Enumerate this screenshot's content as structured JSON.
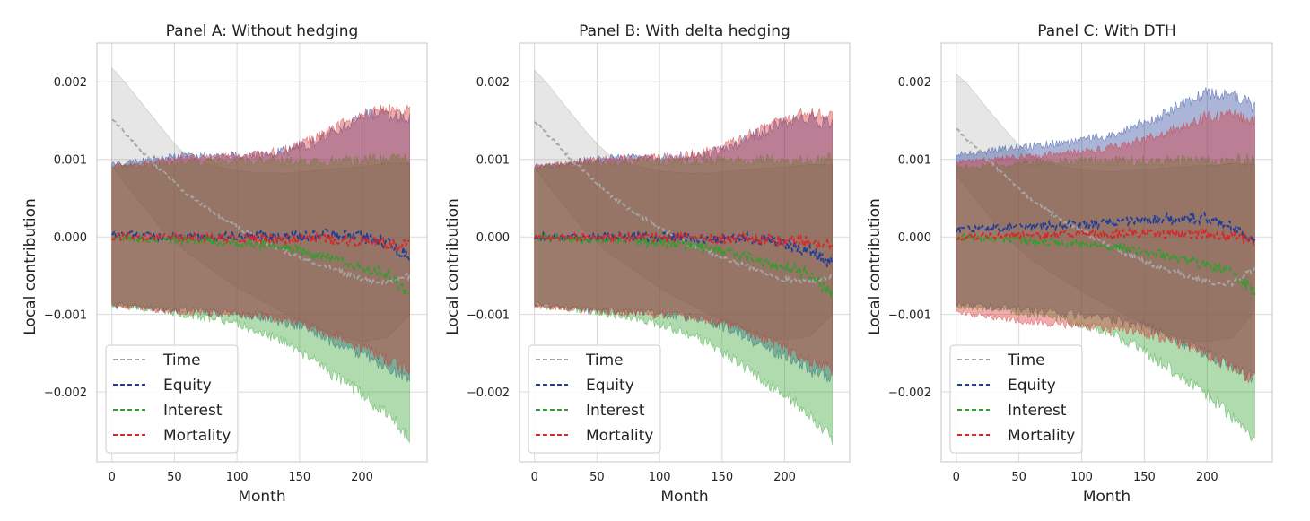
{
  "figure": {
    "xlabel": "Month",
    "ylabel": "Local contribution",
    "legend": [
      "Time",
      "Equity",
      "Interest",
      "Mortality"
    ]
  },
  "chart_data": [
    {
      "type": "line",
      "title": "Panel A: Without hedging",
      "xlabel": "Month",
      "ylabel": "Local contribution",
      "xlim": [
        -12,
        252
      ],
      "ylim": [
        -0.0029,
        0.0025
      ],
      "xticks": [
        0,
        50,
        100,
        150,
        200
      ],
      "yticks": [
        0.002,
        0.001,
        0.0,
        -0.001,
        -0.002
      ],
      "ytick_labels": [
        "0.002",
        "0.001",
        "0.000",
        "−0.001",
        "−0.002"
      ],
      "legend_position": "lower-left",
      "grid": true,
      "series": [
        {
          "name": "Time",
          "color": "#a6a6a6",
          "x": [
            0,
            10,
            20,
            30,
            40,
            50,
            60,
            80,
            100,
            120,
            140,
            160,
            180,
            200,
            220,
            238
          ],
          "mean": [
            0.00152,
            0.00135,
            0.00118,
            0.001,
            0.00085,
            0.0007,
            0.00055,
            0.00032,
            0.00013,
            -5e-05,
            -0.0002,
            -0.00033,
            -0.00043,
            -0.00055,
            -0.00058,
            -0.0005
          ],
          "band_upper": [
            0.00218,
            0.002,
            0.0018,
            0.0016,
            0.0014,
            0.0012,
            0.00105,
            0.00092,
            0.00085,
            0.00082,
            0.00082,
            0.00085,
            0.00088,
            0.0009,
            0.00095,
            0.00095
          ],
          "band_lower": [
            0.00092,
            0.0007,
            0.0005,
            0.0003,
            0.0001,
            -5e-05,
            -0.0002,
            -0.00042,
            -0.00065,
            -0.00082,
            -0.001,
            -0.00115,
            -0.00128,
            -0.00135,
            -0.0013,
            -0.001
          ]
        },
        {
          "name": "Equity",
          "color": "#1f3d99",
          "x": [
            0,
            20,
            40,
            60,
            80,
            100,
            120,
            140,
            160,
            180,
            200,
            220,
            238
          ],
          "mean": [
            5e-05,
            2e-05,
            0.0,
            0.0,
            1e-05,
            2e-05,
            1e-05,
            0.0,
            2e-05,
            3e-05,
            0.0,
            -8e-05,
            -0.00025
          ],
          "band_upper": [
            0.00093,
            0.00095,
            0.001,
            0.00103,
            0.00102,
            0.00102,
            0.00105,
            0.00108,
            0.00118,
            0.00135,
            0.00152,
            0.00155,
            0.00148
          ],
          "band_lower": [
            -0.00085,
            -0.00088,
            -0.00092,
            -0.00093,
            -0.00095,
            -0.00097,
            -0.001,
            -0.00108,
            -0.00118,
            -0.00135,
            -0.00148,
            -0.00165,
            -0.00175
          ]
        },
        {
          "name": "Interest",
          "color": "#2ca02c",
          "x": [
            0,
            20,
            40,
            60,
            80,
            100,
            120,
            140,
            160,
            180,
            200,
            220,
            238
          ],
          "mean": [
            0.0,
            -2e-05,
            -3e-05,
            -5e-05,
            -6e-05,
            -8e-05,
            -0.0001,
            -0.00014,
            -0.00022,
            -0.0003,
            -0.0004,
            -0.00048,
            -0.00075
          ],
          "band_upper": [
            0.00088,
            0.0009,
            0.00092,
            0.00093,
            0.00095,
            0.00095,
            0.00095,
            0.00095,
            0.00095,
            0.00095,
            0.00095,
            0.00095,
            0.00095
          ],
          "band_lower": [
            -0.00088,
            -0.0009,
            -0.00093,
            -0.00098,
            -0.00103,
            -0.0011,
            -0.0012,
            -0.00135,
            -0.00155,
            -0.00178,
            -0.002,
            -0.00225,
            -0.00255
          ]
        },
        {
          "name": "Mortality",
          "color": "#d62728",
          "x": [
            0,
            20,
            40,
            60,
            80,
            100,
            120,
            140,
            160,
            180,
            200,
            220,
            238
          ],
          "mean": [
            0.0,
            0.0,
            0.0,
            -1e-05,
            0.0,
            -2e-05,
            -1e-05,
            -3e-05,
            -2e-05,
            -4e-05,
            -5e-05,
            -8e-05,
            -0.00012
          ],
          "band_upper": [
            0.0009,
            0.00093,
            0.00097,
            0.001,
            0.001,
            0.00102,
            0.00105,
            0.0011,
            0.00122,
            0.00138,
            0.00155,
            0.00162,
            0.00158
          ],
          "band_lower": [
            -0.00088,
            -0.0009,
            -0.00093,
            -0.00095,
            -0.00096,
            -0.00098,
            -0.001,
            -0.00105,
            -0.00113,
            -0.00125,
            -0.0014,
            -0.00155,
            -0.00168
          ]
        }
      ]
    },
    {
      "type": "line",
      "title": "Panel B: With delta hedging",
      "xlabel": "Month",
      "ylabel": "Local contribution",
      "xlim": [
        -12,
        252
      ],
      "ylim": [
        -0.0029,
        0.0025
      ],
      "xticks": [
        0,
        50,
        100,
        150,
        200
      ],
      "yticks": [
        0.002,
        0.001,
        0.0,
        -0.001,
        -0.002
      ],
      "ytick_labels": [
        "0.002",
        "0.001",
        "0.000",
        "−0.001",
        "−0.002"
      ],
      "legend_position": "lower-left",
      "grid": true,
      "series": [
        {
          "name": "Time",
          "color": "#a6a6a6",
          "x": [
            0,
            10,
            20,
            30,
            40,
            50,
            60,
            80,
            100,
            120,
            140,
            160,
            180,
            200,
            220,
            238
          ],
          "mean": [
            0.0015,
            0.00133,
            0.00116,
            0.00099,
            0.00084,
            0.00069,
            0.00054,
            0.00031,
            0.00012,
            -6e-05,
            -0.0002,
            -0.00033,
            -0.00043,
            -0.00055,
            -0.00058,
            -0.0005
          ],
          "band_upper": [
            0.00215,
            0.00198,
            0.00178,
            0.00158,
            0.00138,
            0.0012,
            0.00105,
            0.00092,
            0.00085,
            0.00082,
            0.00082,
            0.00085,
            0.00088,
            0.0009,
            0.00093,
            0.00093
          ],
          "band_lower": [
            0.0009,
            0.00068,
            0.00048,
            0.00028,
            8e-05,
            -7e-05,
            -0.00022,
            -0.00043,
            -0.00066,
            -0.00083,
            -0.001,
            -0.00115,
            -0.00127,
            -0.00133,
            -0.00128,
            -0.001
          ]
        },
        {
          "name": "Equity",
          "color": "#1f3d99",
          "x": [
            0,
            20,
            40,
            60,
            80,
            100,
            120,
            140,
            160,
            180,
            200,
            220,
            238
          ],
          "mean": [
            0.0,
            0.0,
            -1e-05,
            0.0,
            0.0,
            0.0,
            -1e-05,
            -2e-05,
            -1e-05,
            -3e-05,
            -8e-05,
            -0.00018,
            -0.00035
          ],
          "band_upper": [
            0.0009,
            0.00092,
            0.00097,
            0.001,
            0.001,
            0.001,
            0.00102,
            0.00105,
            0.00115,
            0.0013,
            0.00145,
            0.0015,
            0.00142
          ],
          "band_lower": [
            -0.00085,
            -0.00088,
            -0.00092,
            -0.00093,
            -0.00095,
            -0.00097,
            -0.001,
            -0.00108,
            -0.00118,
            -0.00135,
            -0.0015,
            -0.00168,
            -0.00178
          ]
        },
        {
          "name": "Interest",
          "color": "#2ca02c",
          "x": [
            0,
            20,
            40,
            60,
            80,
            100,
            120,
            140,
            160,
            180,
            200,
            220,
            238
          ],
          "mean": [
            0.0,
            -2e-05,
            -3e-05,
            -5e-05,
            -6e-05,
            -8e-05,
            -0.0001,
            -0.00014,
            -0.00022,
            -0.0003,
            -0.00038,
            -0.00048,
            -0.00075
          ],
          "band_upper": [
            0.00088,
            0.0009,
            0.00092,
            0.00093,
            0.00095,
            0.00095,
            0.00095,
            0.00095,
            0.00095,
            0.00095,
            0.00095,
            0.00095,
            0.00095
          ],
          "band_lower": [
            -0.00088,
            -0.0009,
            -0.00093,
            -0.00098,
            -0.00103,
            -0.0011,
            -0.0012,
            -0.00135,
            -0.00155,
            -0.00178,
            -0.002,
            -0.00225,
            -0.00255
          ]
        },
        {
          "name": "Mortality",
          "color": "#d62728",
          "x": [
            0,
            20,
            40,
            60,
            80,
            100,
            120,
            140,
            160,
            180,
            200,
            220,
            238
          ],
          "mean": [
            0.0,
            0.0,
            0.0,
            -1e-05,
            0.0,
            -1e-05,
            -1e-05,
            -2e-05,
            -2e-05,
            -3e-05,
            -4e-05,
            -6e-05,
            -0.0001
          ],
          "band_upper": [
            0.0009,
            0.00093,
            0.00096,
            0.00099,
            0.001,
            0.001,
            0.00103,
            0.00108,
            0.0012,
            0.00135,
            0.0015,
            0.00158,
            0.00152
          ],
          "band_lower": [
            -0.00088,
            -0.0009,
            -0.00093,
            -0.00095,
            -0.00096,
            -0.00098,
            -0.001,
            -0.00105,
            -0.00113,
            -0.00125,
            -0.0014,
            -0.00155,
            -0.00168
          ]
        }
      ]
    },
    {
      "type": "line",
      "title": "Panel C: With DTH",
      "xlabel": "Month",
      "ylabel": "Local contribution",
      "xlim": [
        -12,
        252
      ],
      "ylim": [
        -0.0029,
        0.0025
      ],
      "xticks": [
        0,
        50,
        100,
        150,
        200
      ],
      "yticks": [
        0.002,
        0.001,
        0.0,
        -0.001,
        -0.002
      ],
      "ytick_labels": [
        "0.002",
        "0.001",
        "0.000",
        "−0.001",
        "−0.002"
      ],
      "legend_position": "lower-left",
      "grid": true,
      "series": [
        {
          "name": "Time",
          "color": "#a6a6a6",
          "x": [
            0,
            10,
            20,
            30,
            40,
            50,
            60,
            80,
            100,
            120,
            140,
            160,
            180,
            200,
            220,
            238
          ],
          "mean": [
            0.0014,
            0.00124,
            0.00108,
            0.00092,
            0.00077,
            0.00062,
            0.00048,
            0.00026,
            8e-05,
            -0.0001,
            -0.00025,
            -0.00038,
            -0.00048,
            -0.00058,
            -0.0006,
            -0.0004
          ],
          "band_upper": [
            0.0021,
            0.00195,
            0.00175,
            0.00155,
            0.00136,
            0.00118,
            0.00104,
            0.00092,
            0.00086,
            0.00084,
            0.00085,
            0.00088,
            0.0009,
            0.00092,
            0.00094,
            0.00094
          ],
          "band_lower": [
            0.0008,
            0.0006,
            0.0004,
            0.0002,
            0.0,
            -0.00015,
            -0.0003,
            -0.0005,
            -0.0007,
            -0.00088,
            -0.00105,
            -0.0012,
            -0.0013,
            -0.00135,
            -0.0013,
            -0.00095
          ]
        },
        {
          "name": "Equity",
          "color": "#1f3d99",
          "x": [
            0,
            20,
            40,
            60,
            80,
            100,
            120,
            140,
            160,
            180,
            200,
            220,
            238
          ],
          "mean": [
            0.0001,
            0.00011,
            0.00012,
            0.00013,
            0.00015,
            0.00016,
            0.00018,
            0.0002,
            0.00022,
            0.00025,
            0.00023,
            0.00015,
            -0.0001
          ],
          "band_upper": [
            0.00105,
            0.00108,
            0.00112,
            0.00115,
            0.00118,
            0.00122,
            0.00128,
            0.00138,
            0.0015,
            0.00168,
            0.00182,
            0.00178,
            0.00165
          ],
          "band_lower": [
            -0.00085,
            -0.00088,
            -0.0009,
            -0.00092,
            -0.00095,
            -0.00098,
            -0.00102,
            -0.00108,
            -0.00118,
            -0.00132,
            -0.00148,
            -0.00165,
            -0.00178
          ]
        },
        {
          "name": "Interest",
          "color": "#2ca02c",
          "x": [
            0,
            20,
            40,
            60,
            80,
            100,
            120,
            140,
            160,
            180,
            200,
            220,
            238
          ],
          "mean": [
            0.0,
            -2e-05,
            -3e-05,
            -5e-05,
            -7e-05,
            -9e-05,
            -0.00012,
            -0.00016,
            -0.00022,
            -0.00028,
            -0.00036,
            -0.00044,
            -0.00072
          ],
          "band_upper": [
            0.00088,
            0.0009,
            0.00092,
            0.00093,
            0.00095,
            0.00095,
            0.00095,
            0.00095,
            0.00095,
            0.00095,
            0.00095,
            0.00095,
            0.00095
          ],
          "band_lower": [
            -0.00088,
            -0.0009,
            -0.00093,
            -0.00098,
            -0.00103,
            -0.0011,
            -0.0012,
            -0.00135,
            -0.00155,
            -0.00178,
            -0.002,
            -0.00228,
            -0.00262
          ]
        },
        {
          "name": "Mortality",
          "color": "#d62728",
          "x": [
            0,
            20,
            40,
            60,
            80,
            100,
            120,
            140,
            160,
            180,
            200,
            220,
            238
          ],
          "mean": [
            0.0,
            1e-05,
            2e-05,
            2e-05,
            3e-05,
            4e-05,
            4e-05,
            5e-05,
            5e-05,
            4e-05,
            3e-05,
            0.0,
            -5e-05
          ],
          "band_upper": [
            0.00095,
            0.00098,
            0.001,
            0.00102,
            0.00105,
            0.00108,
            0.00112,
            0.00118,
            0.00128,
            0.0014,
            0.00152,
            0.00155,
            0.00148
          ],
          "band_lower": [
            -0.00095,
            -0.001,
            -0.00105,
            -0.00108,
            -0.0011,
            -0.00112,
            -0.00115,
            -0.00118,
            -0.00125,
            -0.00135,
            -0.0015,
            -0.00165,
            -0.0018
          ]
        }
      ]
    }
  ]
}
